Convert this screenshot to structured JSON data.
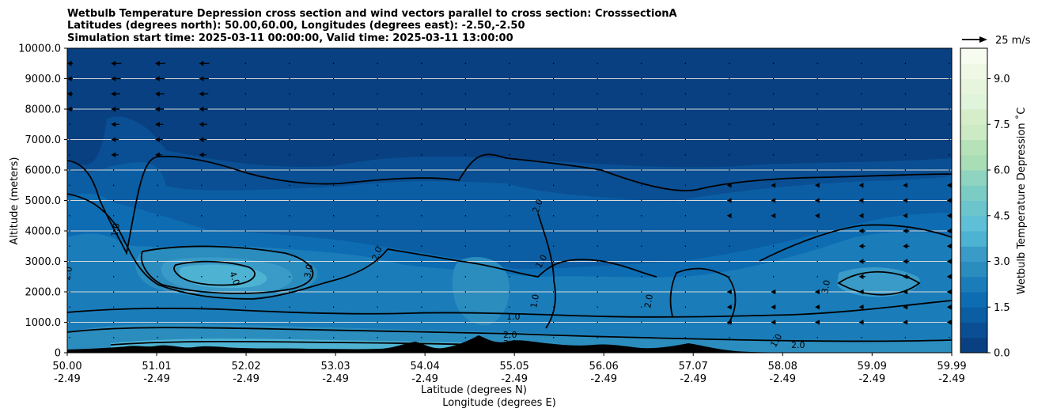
{
  "chart_data": {
    "type": "heatmap",
    "title_lines": [
      "Wetbulb Temperature Depression cross section and wind vectors parallel to cross section: CrosssectionA",
      "Latitudes (degrees north): 50.00,60.00, Longitudes (degrees east): -2.50,-2.50",
      "Simulation start time: 2025-03-11 00:00:00, Valid time: 2025-03-11 13:00:00"
    ],
    "xlabel_lat": "Latitude (degrees N)",
    "xlabel_lon": "Longitude (degrees E)",
    "ylabel": "Altitude (meters)",
    "x_range": [
      50.0,
      59.99
    ],
    "ylim": [
      0,
      10000
    ],
    "x_ticks": [
      {
        "lat": "50.00",
        "lon": "-2.49"
      },
      {
        "lat": "51.01",
        "lon": "-2.49"
      },
      {
        "lat": "52.02",
        "lon": "-2.49"
      },
      {
        "lat": "53.03",
        "lon": "-2.49"
      },
      {
        "lat": "54.04",
        "lon": "-2.49"
      },
      {
        "lat": "55.05",
        "lon": "-2.49"
      },
      {
        "lat": "56.06",
        "lon": "-2.49"
      },
      {
        "lat": "57.07",
        "lon": "-2.49"
      },
      {
        "lat": "58.08",
        "lon": "-2.49"
      },
      {
        "lat": "59.09",
        "lon": "-2.49"
      },
      {
        "lat": "59.99",
        "lon": "-2.49"
      }
    ],
    "y_ticks": [
      "0",
      "1000.0",
      "2000.0",
      "3000.0",
      "4000.0",
      "5000.0",
      "6000.0",
      "7000.0",
      "8000.0",
      "9000.0",
      "10000.0"
    ],
    "grid": "horizontal",
    "colorbar": {
      "label": "Wetbulb Temperature Depression ˚C",
      "range": [
        0,
        10.0
      ],
      "ticks": [
        "0.0",
        "1.5",
        "3.0",
        "4.5",
        "6.0",
        "7.5",
        "9.0"
      ],
      "levels": 20,
      "colors": [
        "#084081",
        "#0a4f93",
        "#0b5ea4",
        "#0e6db2",
        "#1a7dba",
        "#2b8cbe",
        "#3a9bc8",
        "#4eb3d3",
        "#5ebfd6",
        "#6cc5cc",
        "#7bccc4",
        "#8fd4c0",
        "#a8ddb5",
        "#b5e2b8",
        "#ccebc5",
        "#d5eec9",
        "#e0f3db",
        "#e7f5dd",
        "#eef8e4",
        "#f7fcf0"
      ]
    },
    "contour_labels": [
      "2.0",
      "1.0",
      "3.0",
      "4.0"
    ],
    "wind_reference": {
      "label": "25 m/s",
      "speed": 25
    },
    "series": [
      {
        "name": "Wetbulb Temperature Depression",
        "kind": "filled_contour"
      },
      {
        "name": "wind vectors parallel to cross section",
        "kind": "quiver"
      },
      {
        "name": "terrain",
        "kind": "fill",
        "color": "#000000"
      }
    ]
  }
}
